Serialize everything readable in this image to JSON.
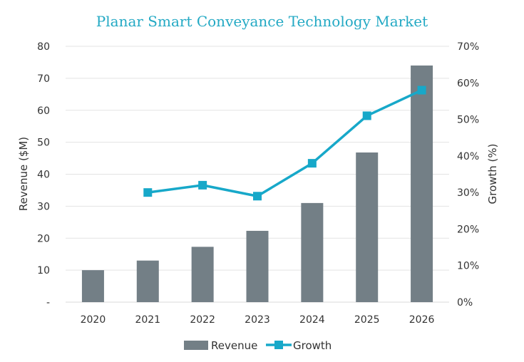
{
  "chart_data": {
    "type": "bar",
    "title": "Planar Smart Conveyance Technology Market",
    "categories": [
      "2020",
      "2021",
      "2022",
      "2023",
      "2024",
      "2025",
      "2026"
    ],
    "series": [
      {
        "name": "Revenue",
        "type": "bar",
        "axis": "left",
        "values": [
          10,
          13,
          17.3,
          22.3,
          31,
          46.8,
          74
        ],
        "color": "#737f86"
      },
      {
        "name": "Growth",
        "type": "line",
        "axis": "right",
        "values": [
          null,
          30,
          32,
          29,
          38,
          51,
          58
        ],
        "color": "#17a8c9"
      }
    ],
    "ylabel": "Revenue ($M)",
    "y2label": "Growth (%)",
    "ylim": [
      0,
      80
    ],
    "y2lim": [
      0,
      70
    ],
    "yticks": [
      "-",
      "10",
      "20",
      "30",
      "40",
      "50",
      "60",
      "70",
      "80"
    ],
    "y2ticks": [
      "0%",
      "10%",
      "20%",
      "30%",
      "40%",
      "50%",
      "60%",
      "70%"
    ],
    "grid": true,
    "legend": "bottom"
  }
}
